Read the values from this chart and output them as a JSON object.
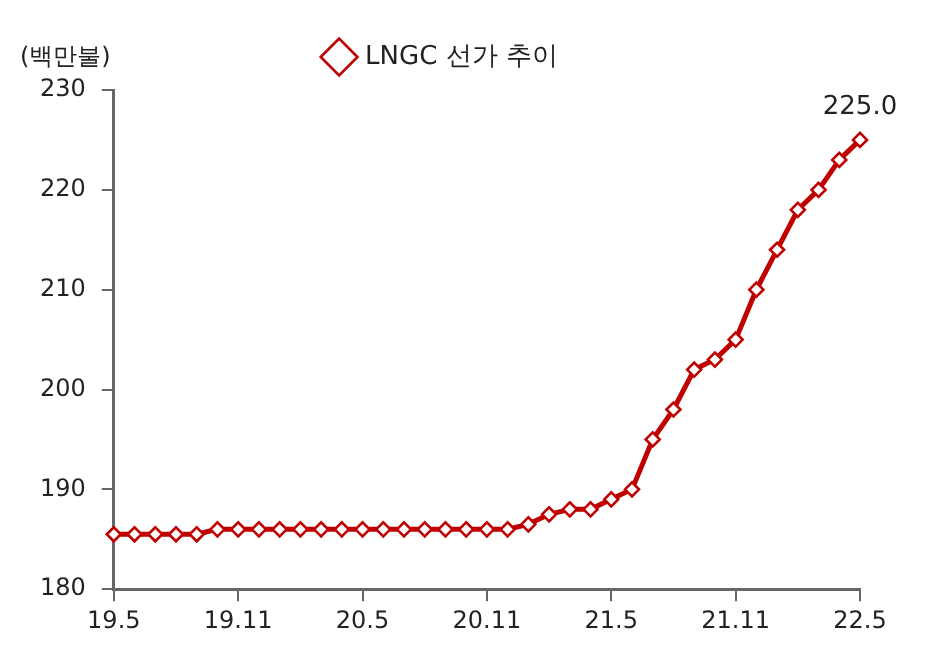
{
  "chart_data": {
    "type": "line",
    "ylabel": "(백만불)",
    "categories": [
      "19.5",
      null,
      null,
      null,
      null,
      null,
      "19.11",
      null,
      null,
      null,
      null,
      null,
      "20.5",
      null,
      null,
      null,
      null,
      null,
      "20.11",
      null,
      null,
      null,
      null,
      null,
      "21.5",
      null,
      null,
      null,
      null,
      null,
      "21.11",
      null,
      null,
      null,
      null,
      null,
      "22.5"
    ],
    "series": [
      {
        "name": "LNGC 선가 추이",
        "color": "#c00000",
        "values": [
          185.5,
          185.5,
          185.5,
          185.5,
          185.5,
          186,
          186,
          186,
          186,
          186,
          186,
          186,
          186,
          186,
          186,
          186,
          186,
          186,
          186,
          186,
          186.5,
          187.5,
          188,
          188,
          189,
          190,
          195,
          198,
          202,
          203,
          205,
          210,
          214,
          218,
          220,
          223,
          225
        ],
        "value_labels": [
          null,
          null,
          null,
          null,
          null,
          null,
          null,
          null,
          null,
          null,
          null,
          null,
          null,
          null,
          null,
          null,
          null,
          null,
          null,
          null,
          null,
          null,
          null,
          null,
          null,
          null,
          null,
          null,
          null,
          null,
          null,
          null,
          null,
          null,
          null,
          null,
          "225.0"
        ]
      }
    ],
    "ylim": [
      180,
      230
    ],
    "yticks": [
      180,
      190,
      200,
      210,
      220,
      230
    ],
    "grid": false,
    "legend": "top",
    "marker": "diamond",
    "line_style": "solid"
  }
}
